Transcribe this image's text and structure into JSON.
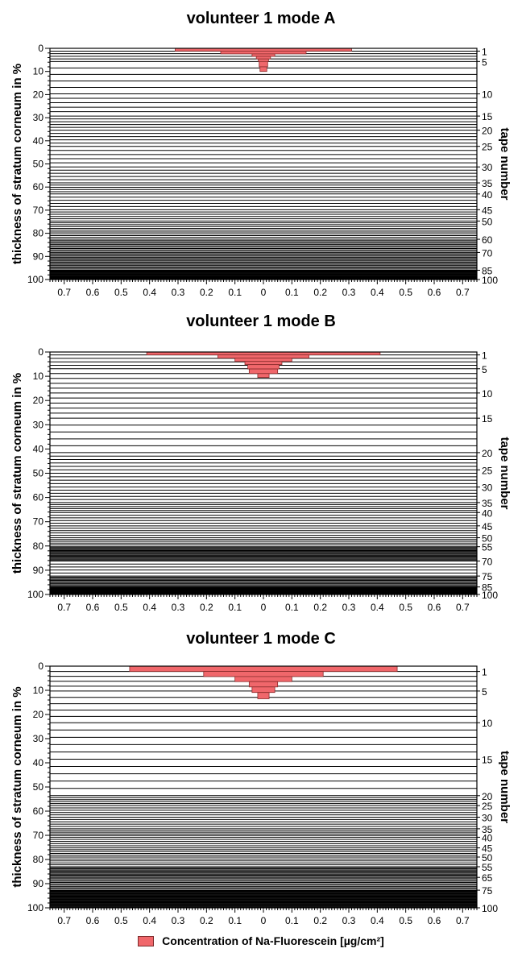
{
  "legend": {
    "label": "Concentration of Na-Fluorescein [µg/cm²]",
    "color": "#f0676b"
  },
  "chart_data": [
    {
      "type": "bar",
      "title": "volunteer 1 mode A",
      "ylabel": "thickness of stratum corneum in %",
      "y2label": "tape number",
      "xlim": [
        -0.75,
        0.75
      ],
      "ylim": [
        0,
        100
      ],
      "x_ticks": [
        "0.7",
        "0.6",
        "0.5",
        "0.4",
        "0.3",
        "0.2",
        "0.1",
        "0",
        "0.1",
        "0.2",
        "0.3",
        "0.4",
        "0.5",
        "0.6",
        "0.7"
      ],
      "y_ticks": [
        "0",
        "10",
        "20",
        "30",
        "40",
        "50",
        "60",
        "70",
        "80",
        "90",
        "100"
      ],
      "tape_ticks": [
        {
          "label": "1",
          "y": 1.2
        },
        {
          "label": "5",
          "y": 5.7
        },
        {
          "label": "10",
          "y": 19.7
        },
        {
          "label": "15",
          "y": 29.3
        },
        {
          "label": "20",
          "y": 35.4
        },
        {
          "label": "25",
          "y": 42.4
        },
        {
          "label": "30",
          "y": 51.3
        },
        {
          "label": "35",
          "y": 58.2
        },
        {
          "label": "40",
          "y": 63.0
        },
        {
          "label": "45",
          "y": 69.8
        },
        {
          "label": "50",
          "y": 74.7
        },
        {
          "label": "60",
          "y": 82.6
        },
        {
          "label": "70",
          "y": 88.3
        },
        {
          "label": "85",
          "y": 96.0
        },
        {
          "label": "100",
          "y": 100
        }
      ],
      "bars": [
        {
          "y0": 0.0,
          "y1": 1.2,
          "value": 0.31
        },
        {
          "y0": 1.2,
          "y1": 2.4,
          "value": 0.15
        },
        {
          "y0": 2.4,
          "y1": 3.5,
          "value": 0.04
        },
        {
          "y0": 3.5,
          "y1": 4.6,
          "value": 0.025
        },
        {
          "y0": 4.6,
          "y1": 5.7,
          "value": 0.018
        },
        {
          "y0": 5.7,
          "y1": 8.0,
          "value": 0.015
        },
        {
          "y0": 8.0,
          "y1": 10.0,
          "value": 0.012
        }
      ]
    },
    {
      "type": "bar",
      "title": "volunteer 1 mode B",
      "ylabel": "thickness of stratum corneum in %",
      "y2label": "tape number",
      "xlim": [
        -0.75,
        0.75
      ],
      "ylim": [
        0,
        100
      ],
      "x_ticks": [
        "0.7",
        "0.6",
        "0.5",
        "0.4",
        "0.3",
        "0.2",
        "0.1",
        "0",
        "0.1",
        "0.2",
        "0.3",
        "0.4",
        "0.5",
        "0.6",
        "0.7"
      ],
      "y_ticks": [
        "0",
        "10",
        "20",
        "30",
        "40",
        "50",
        "60",
        "70",
        "80",
        "90",
        "100"
      ],
      "tape_ticks": [
        {
          "label": "1",
          "y": 1.2
        },
        {
          "label": "5",
          "y": 6.9
        },
        {
          "label": "10",
          "y": 16.9
        },
        {
          "label": "15",
          "y": 27.3
        },
        {
          "label": "20",
          "y": 41.5
        },
        {
          "label": "25",
          "y": 48.6
        },
        {
          "label": "30",
          "y": 55.7
        },
        {
          "label": "35",
          "y": 62.1
        },
        {
          "label": "40",
          "y": 66.2
        },
        {
          "label": "45",
          "y": 71.7
        },
        {
          "label": "50",
          "y": 76.6
        },
        {
          "label": "55",
          "y": 80.3
        },
        {
          "label": "70",
          "y": 86.2
        },
        {
          "label": "75",
          "y": 92.4
        },
        {
          "label": "85",
          "y": 96.9
        },
        {
          "label": "100",
          "y": 100
        }
      ],
      "bars": [
        {
          "y0": 0.0,
          "y1": 1.2,
          "value": 0.41
        },
        {
          "y0": 1.2,
          "y1": 2.5,
          "value": 0.16
        },
        {
          "y0": 2.5,
          "y1": 3.9,
          "value": 0.1
        },
        {
          "y0": 3.9,
          "y1": 5.2,
          "value": 0.065
        },
        {
          "y0": 5.2,
          "y1": 7.0,
          "value": 0.055
        },
        {
          "y0": 7.0,
          "y1": 8.9,
          "value": 0.05
        },
        {
          "y0": 8.9,
          "y1": 10.5,
          "value": 0.02
        }
      ]
    },
    {
      "type": "bar",
      "title": "volunteer 1 mode C",
      "ylabel": "thickness of stratum corneum in %",
      "y2label": "tape number",
      "xlim": [
        -0.75,
        0.75
      ],
      "ylim": [
        0,
        100
      ],
      "x_ticks": [
        "0.7",
        "0.6",
        "0.5",
        "0.4",
        "0.3",
        "0.2",
        "0.1",
        "0",
        "0.1",
        "0.2",
        "0.3",
        "0.4",
        "0.5",
        "0.6",
        "0.7"
      ],
      "y_ticks": [
        "0",
        "10",
        "20",
        "30",
        "40",
        "50",
        "60",
        "70",
        "80",
        "90",
        "100"
      ],
      "tape_ticks": [
        {
          "label": "1",
          "y": 2.2
        },
        {
          "label": "5",
          "y": 10.3
        },
        {
          "label": "10",
          "y": 23.4
        },
        {
          "label": "15",
          "y": 38.5
        },
        {
          "label": "20",
          "y": 53.6
        },
        {
          "label": "25",
          "y": 57.7
        },
        {
          "label": "30",
          "y": 62.5
        },
        {
          "label": "35",
          "y": 67.3
        },
        {
          "label": "40",
          "y": 70.8
        },
        {
          "label": "45",
          "y": 75.2
        },
        {
          "label": "50",
          "y": 79.0
        },
        {
          "label": "55",
          "y": 83.0
        },
        {
          "label": "65",
          "y": 87.4
        },
        {
          "label": "75",
          "y": 92.7
        },
        {
          "label": "100",
          "y": 100
        }
      ],
      "bars": [
        {
          "y0": 0.0,
          "y1": 2.2,
          "value": 0.47
        },
        {
          "y0": 2.2,
          "y1": 4.3,
          "value": 0.21
        },
        {
          "y0": 4.3,
          "y1": 6.4,
          "value": 0.1
        },
        {
          "y0": 6.4,
          "y1": 8.6,
          "value": 0.05
        },
        {
          "y0": 8.6,
          "y1": 10.9,
          "value": 0.04
        },
        {
          "y0": 10.9,
          "y1": 13.5,
          "value": 0.02
        }
      ]
    }
  ]
}
